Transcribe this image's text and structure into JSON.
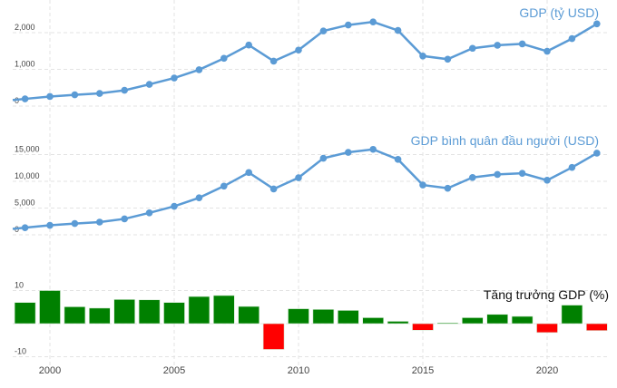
{
  "chart_data": [
    {
      "type": "line",
      "title": "GDP (tỷ USD)",
      "color": "#5b9bd5",
      "x": [
        1999,
        2000,
        2001,
        2002,
        2003,
        2004,
        2005,
        2006,
        2007,
        2008,
        2009,
        2010,
        2011,
        2012,
        2013,
        2014,
        2015,
        2016,
        2017,
        2018,
        2019,
        2020,
        2021,
        2022
      ],
      "values": [
        196,
        260,
        307,
        345,
        430,
        591,
        764,
        990,
        1300,
        1661,
        1223,
        1525,
        2046,
        2208,
        2292,
        2059,
        1363,
        1277,
        1574,
        1657,
        1693,
        1493,
        1837,
        2240
      ],
      "yticks": [
        "0",
        "1,000",
        "2,000"
      ],
      "ytick_values": [
        0,
        1000,
        2000
      ],
      "ylim": [
        0,
        2700
      ],
      "grid": true
    },
    {
      "type": "line",
      "title": "GDP bình quân đầu người (USD)",
      "color": "#5b9bd5",
      "x": [
        1999,
        2000,
        2001,
        2002,
        2003,
        2004,
        2005,
        2006,
        2007,
        2008,
        2009,
        2010,
        2011,
        2012,
        2013,
        2014,
        2015,
        2016,
        2017,
        2018,
        2019,
        2020,
        2021,
        2022
      ],
      "values": [
        1331,
        1771,
        2100,
        2375,
        2976,
        4102,
        5323,
        6920,
        9101,
        11635,
        8563,
        10675,
        14311,
        15420,
        15975,
        14096,
        9313,
        8705,
        10720,
        11287,
        11497,
        10194,
        12593,
        15270
      ],
      "yticks": [
        "0",
        "5,000",
        "10,000",
        "15,000"
      ],
      "ytick_values": [
        0,
        5000,
        10000,
        15000
      ],
      "ylim": [
        0,
        18000
      ],
      "grid": true
    },
    {
      "type": "bar",
      "title": "Tăng trưởng GDP (%)",
      "positive_color": "#008000",
      "negative_color": "#ff0000",
      "x": [
        1999,
        2000,
        2001,
        2002,
        2003,
        2004,
        2005,
        2006,
        2007,
        2008,
        2009,
        2010,
        2011,
        2012,
        2013,
        2014,
        2015,
        2016,
        2017,
        2018,
        2019,
        2020,
        2021,
        2022
      ],
      "values": [
        6.4,
        10.0,
        5.1,
        4.7,
        7.3,
        7.2,
        6.4,
        8.2,
        8.5,
        5.2,
        -7.8,
        4.5,
        4.3,
        4.0,
        1.8,
        0.7,
        -2.0,
        0.2,
        1.8,
        2.8,
        2.2,
        -2.7,
        5.6,
        -2.1
      ],
      "yticks": [
        "-10",
        "0",
        "10"
      ],
      "ytick_values": [
        -10,
        0,
        10
      ],
      "ylim": [
        -11,
        12
      ],
      "xticks": [
        "2000",
        "2005",
        "2010",
        "2015",
        "2020"
      ],
      "xtick_values": [
        2000,
        2005,
        2010,
        2015,
        2020
      ],
      "grid": true
    }
  ]
}
